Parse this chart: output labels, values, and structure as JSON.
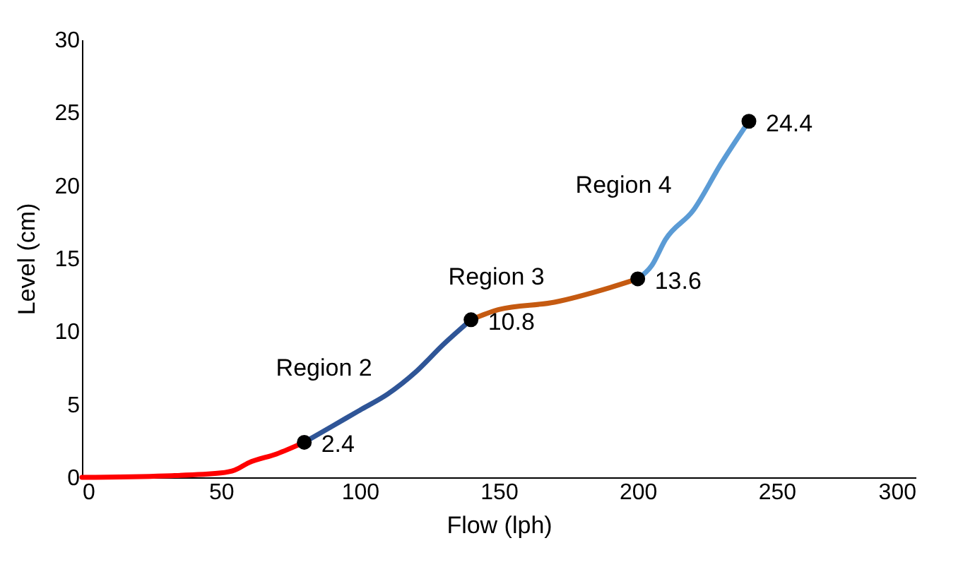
{
  "chart_data": {
    "type": "line",
    "xlabel": "Flow (lph)",
    "ylabel": "Level (cm)",
    "xlim": [
      0,
      300
    ],
    "xticks": [
      0,
      50,
      100,
      150,
      200,
      250,
      300
    ],
    "ylim": [
      0,
      30
    ],
    "yticks": [
      0,
      5,
      10,
      15,
      20,
      25,
      30
    ],
    "grid": false,
    "line_style": "solid",
    "series": [
      {
        "color": "#ff0000",
        "x": [
          0,
          30,
          50,
          55,
          60,
          70,
          80
        ],
        "values": [
          0,
          0.1,
          0.3,
          0.5,
          1.0,
          1.6,
          2.4
        ]
      },
      {
        "color": "#2f5597",
        "x": [
          80,
          90,
          100,
          110,
          120,
          130,
          140
        ],
        "values": [
          2.4,
          3.5,
          4.6,
          5.7,
          7.2,
          9.1,
          10.8
        ]
      },
      {
        "color": "#c55a11",
        "x": [
          140,
          150,
          170,
          190,
          200
        ],
        "values": [
          10.8,
          11.5,
          12.0,
          13.0,
          13.6
        ]
      },
      {
        "color": "#5b9bd5",
        "x": [
          200,
          205,
          210,
          220,
          230,
          240
        ],
        "values": [
          13.6,
          14.5,
          16.3,
          18.3,
          21.5,
          24.4
        ]
      },
      {
        "type": "scatter",
        "marker": "circle",
        "color": "#000000",
        "x": [
          80,
          140,
          200,
          240
        ],
        "values": [
          2.4,
          10.8,
          13.6,
          24.4
        ],
        "value_labels": [
          "2.4",
          "10.8",
          "13.6",
          "24.4"
        ]
      }
    ],
    "annotations": [
      "Region 2",
      "Region 3",
      "Region 4"
    ]
  }
}
